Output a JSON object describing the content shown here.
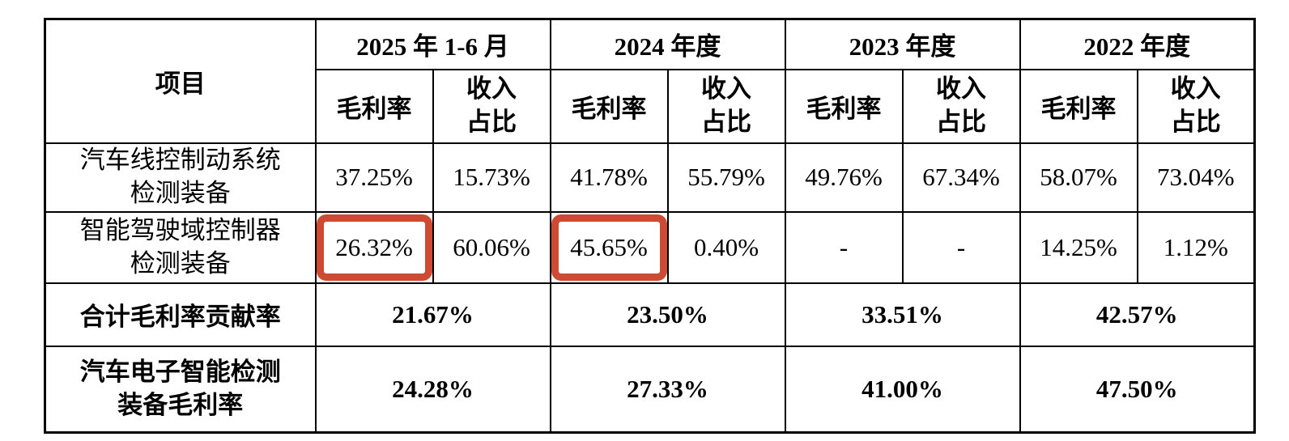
{
  "colors": {
    "highlight": "#cf4a32",
    "grid": "#000000",
    "background": "#ffffff"
  },
  "table": {
    "corner": "项目",
    "groups": [
      {
        "label": "2025 年 1-6 月"
      },
      {
        "label": "2024 年度"
      },
      {
        "label": "2023 年度"
      },
      {
        "label": "2022 年度"
      }
    ],
    "sub": {
      "margin": "毛利率",
      "share1": "收入",
      "share2": "占比"
    },
    "rows": [
      {
        "label1": "汽车线控制动系统",
        "label2": "检测装备",
        "values": [
          "37.25%",
          "15.73%",
          "41.78%",
          "55.79%",
          "49.76%",
          "67.34%",
          "58.07%",
          "73.04%"
        ]
      },
      {
        "label1": "智能驾驶域控制器",
        "label2": "检测装备",
        "values": [
          "26.32%",
          "60.06%",
          "45.65%",
          "0.40%",
          "-",
          "-",
          "14.25%",
          "1.12%"
        ]
      }
    ],
    "summary": [
      {
        "label1": "合计毛利率贡献率",
        "label2": "",
        "values": [
          "21.67%",
          "23.50%",
          "33.51%",
          "42.57%"
        ]
      },
      {
        "label1": "汽车电子智能检测",
        "label2": "装备毛利率",
        "values": [
          "24.28%",
          "27.33%",
          "41.00%",
          "47.50%"
        ]
      }
    ]
  }
}
